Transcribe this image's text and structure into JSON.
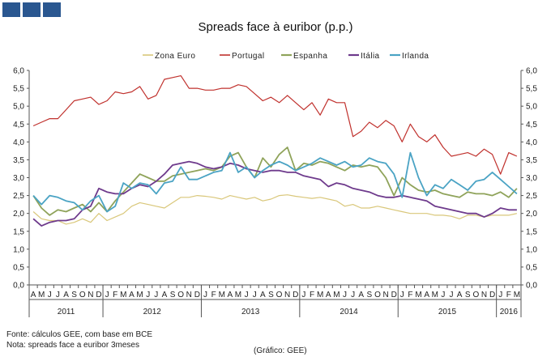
{
  "logo": {
    "color": "#2a5790"
  },
  "source_note": "Fonte: cálculos GEE, com base em BCE",
  "method_note": "Nota: spreads face a euribor 3meses",
  "credit_note": "(Gráfico: GEE)",
  "chart_data": {
    "type": "line",
    "title": "Spreads face à euribor (p.p.)",
    "ylim": [
      0,
      6
    ],
    "yticks": [
      "0,0",
      "0,5",
      "1,0",
      "1,5",
      "2,0",
      "2,5",
      "3,0",
      "3,5",
      "4,0",
      "4,5",
      "5,0",
      "5,5",
      "6,0"
    ],
    "grid": false,
    "legend_position": "top",
    "x": [
      "A",
      "M",
      "J",
      "J",
      "A",
      "S",
      "O",
      "N",
      "D",
      "J",
      "F",
      "M",
      "A",
      "M",
      "J",
      "J",
      "A",
      "S",
      "O",
      "N",
      "D",
      "J",
      "F",
      "M",
      "A",
      "M",
      "J",
      "J",
      "A",
      "S",
      "O",
      "N",
      "D",
      "J",
      "F",
      "M",
      "A",
      "M",
      "J",
      "J",
      "A",
      "S",
      "O",
      "N",
      "D",
      "J",
      "F",
      "M",
      "A",
      "M",
      "J",
      "J",
      "A",
      "S",
      "O",
      "N",
      "D",
      "J",
      "F",
      "M"
    ],
    "year_labels": [
      {
        "label": "2011",
        "start": 0,
        "end": 8
      },
      {
        "label": "2012",
        "start": 9,
        "end": 20
      },
      {
        "label": "2013",
        "start": 21,
        "end": 32
      },
      {
        "label": "2014",
        "start": 33,
        "end": 44
      },
      {
        "label": "2015",
        "start": 45,
        "end": 56
      },
      {
        "label": "2016",
        "start": 57,
        "end": 59
      }
    ],
    "series": [
      {
        "name": "Zona Euro",
        "color": "#d9c77a",
        "width": 1.2,
        "values": [
          2.05,
          1.85,
          1.8,
          1.8,
          1.7,
          1.75,
          1.85,
          1.75,
          2.0,
          1.8,
          1.9,
          2.0,
          2.2,
          2.3,
          2.25,
          2.2,
          2.15,
          2.3,
          2.45,
          2.45,
          2.5,
          2.48,
          2.45,
          2.4,
          2.5,
          2.45,
          2.4,
          2.45,
          2.35,
          2.4,
          2.5,
          2.52,
          2.48,
          2.45,
          2.42,
          2.45,
          2.4,
          2.35,
          2.2,
          2.25,
          2.15,
          2.15,
          2.2,
          2.15,
          2.1,
          2.05,
          2.0,
          2.0,
          2.0,
          1.95,
          1.95,
          1.92,
          1.85,
          1.95,
          1.95,
          1.9,
          1.95,
          1.95,
          1.95,
          2.0
        ]
      },
      {
        "name": "Portugal",
        "color": "#c0312d",
        "width": 1.2,
        "values": [
          4.45,
          4.55,
          4.65,
          4.65,
          4.9,
          5.15,
          5.2,
          5.25,
          5.05,
          5.15,
          5.4,
          5.35,
          5.4,
          5.55,
          5.2,
          5.3,
          5.75,
          5.8,
          5.85,
          5.5,
          5.5,
          5.45,
          5.45,
          5.5,
          5.5,
          5.6,
          5.55,
          5.35,
          5.15,
          5.25,
          5.1,
          5.3,
          5.1,
          4.9,
          5.1,
          4.75,
          5.2,
          5.1,
          5.1,
          4.15,
          4.3,
          4.55,
          4.4,
          4.6,
          4.45,
          4.0,
          4.5,
          4.15,
          4.0,
          4.2,
          3.85,
          3.6,
          3.65,
          3.7,
          3.6,
          3.8,
          3.65,
          3.1,
          3.7,
          3.6
        ]
      },
      {
        "name": "Espanha",
        "color": "#8fa35a",
        "width": 1.8,
        "values": [
          2.5,
          2.15,
          1.95,
          2.1,
          2.05,
          2.15,
          2.25,
          2.05,
          2.3,
          2.05,
          2.35,
          2.6,
          2.85,
          3.1,
          3.0,
          2.9,
          2.9,
          3.05,
          3.1,
          3.15,
          3.2,
          3.25,
          3.2,
          3.3,
          3.6,
          3.7,
          3.3,
          3.0,
          3.55,
          3.3,
          3.65,
          3.85,
          3.2,
          3.4,
          3.35,
          3.45,
          3.4,
          3.3,
          3.2,
          3.35,
          3.3,
          3.35,
          3.3,
          3.0,
          2.5,
          3.0,
          2.8,
          2.65,
          2.6,
          2.65,
          2.55,
          2.5,
          2.45,
          2.6,
          2.55,
          2.55,
          2.5,
          2.6,
          2.45,
          2.7
        ]
      },
      {
        "name": "Itália",
        "color": "#6e3a8c",
        "width": 1.8,
        "values": [
          1.85,
          1.65,
          1.75,
          1.8,
          1.8,
          1.85,
          2.1,
          2.2,
          2.7,
          2.6,
          2.55,
          2.55,
          2.7,
          2.8,
          2.75,
          2.9,
          3.1,
          3.35,
          3.4,
          3.45,
          3.4,
          3.3,
          3.25,
          3.3,
          3.4,
          3.35,
          3.25,
          3.2,
          3.15,
          3.2,
          3.2,
          3.15,
          3.15,
          3.05,
          3.0,
          2.95,
          2.75,
          2.85,
          2.8,
          2.7,
          2.65,
          2.6,
          2.5,
          2.45,
          2.45,
          2.5,
          2.45,
          2.4,
          2.35,
          2.2,
          2.15,
          2.1,
          2.05,
          2.0,
          2.0,
          1.9,
          2.0,
          2.15,
          2.1,
          2.1
        ]
      },
      {
        "name": "Irlanda",
        "color": "#4aa3c4",
        "width": 1.8,
        "values": [
          2.5,
          2.25,
          2.5,
          2.45,
          2.35,
          2.3,
          2.1,
          2.35,
          2.5,
          2.05,
          2.2,
          2.85,
          2.7,
          2.85,
          2.8,
          2.55,
          2.85,
          2.9,
          3.3,
          2.95,
          2.95,
          3.05,
          3.15,
          3.2,
          3.7,
          3.15,
          3.3,
          3.0,
          3.2,
          3.35,
          3.45,
          3.35,
          3.2,
          3.3,
          3.4,
          3.55,
          3.45,
          3.35,
          3.45,
          3.3,
          3.35,
          3.55,
          3.45,
          3.4,
          3.1,
          2.45,
          3.7,
          3.0,
          2.5,
          2.8,
          2.7,
          2.95,
          2.8,
          2.65,
          2.9,
          2.95,
          3.15,
          2.95,
          2.75,
          2.55
        ]
      }
    ]
  }
}
